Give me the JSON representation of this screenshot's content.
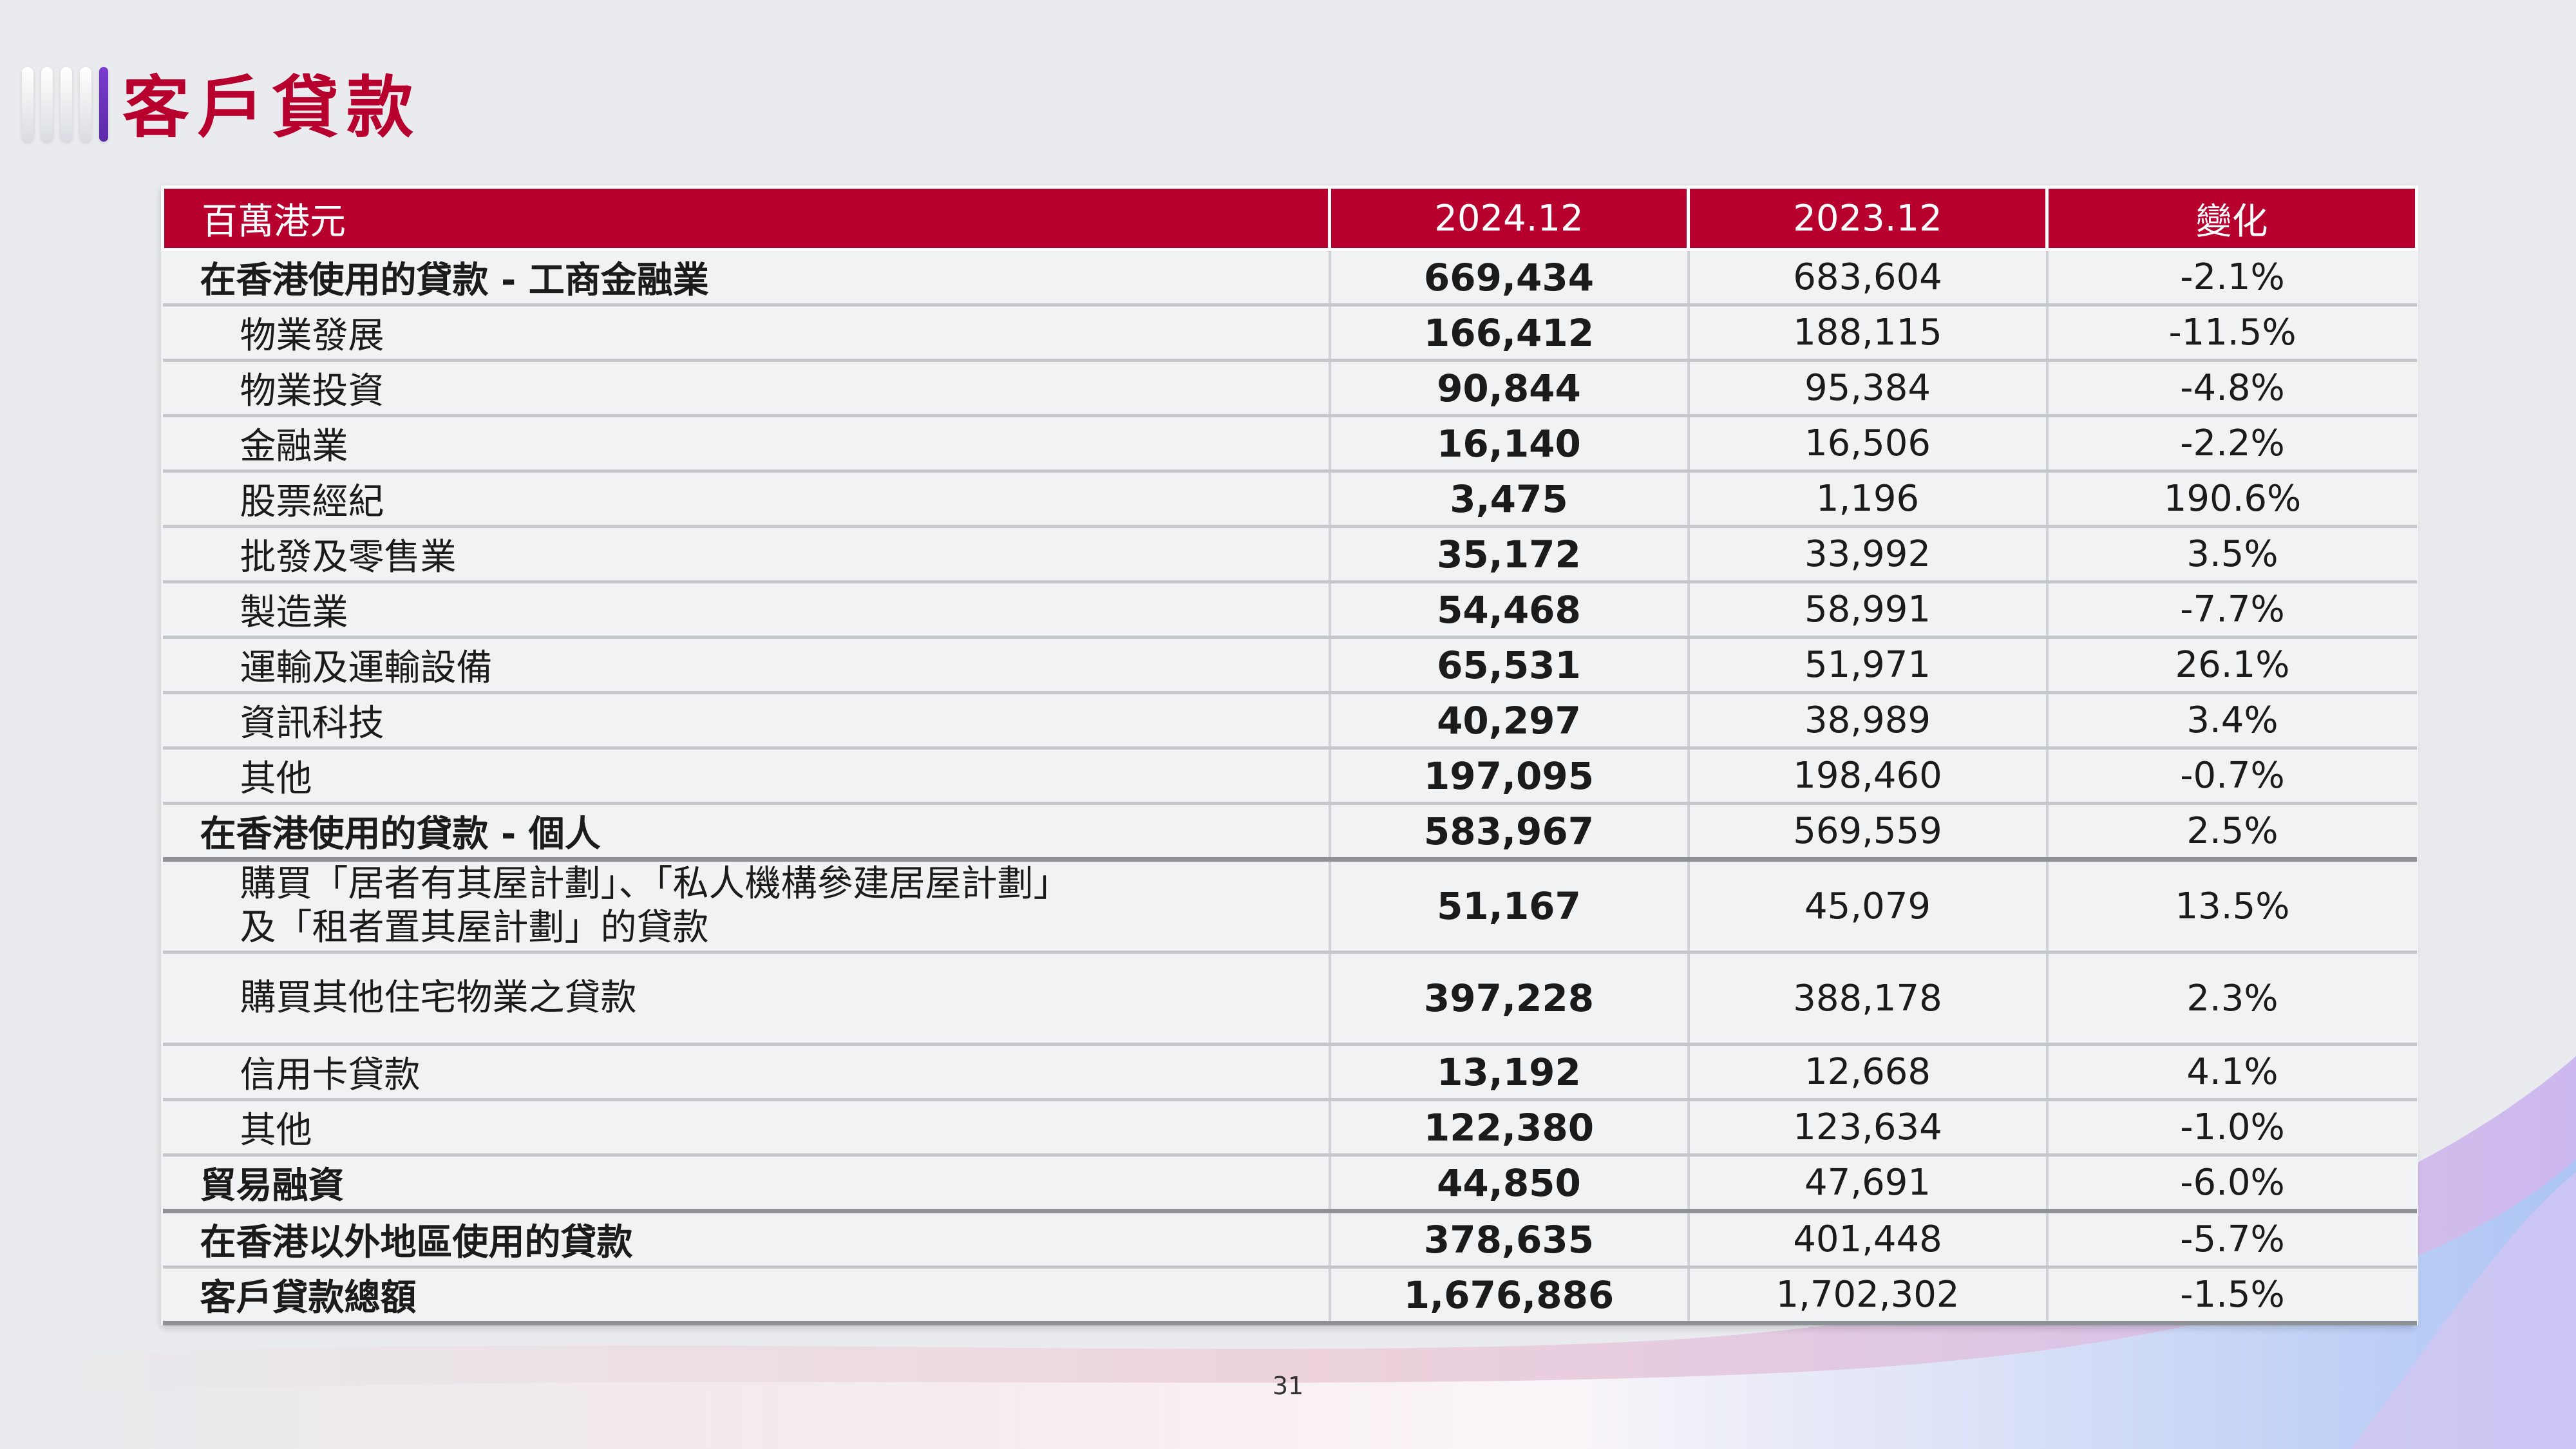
{
  "title": "客戶貸款",
  "table": {
    "headers": [
      "百萬港元",
      "2024.12",
      "2023.12",
      "變化"
    ],
    "rows": [
      {
        "label": "在香港使用的貸款 - 工商金融業",
        "v2024": "669,434",
        "v2023": "683,604",
        "change": "-2.1%"
      },
      {
        "label": "物業發展",
        "v2024": "166,412",
        "v2023": "188,115",
        "change": "-11.5%"
      },
      {
        "label": "物業投資",
        "v2024": "90,844",
        "v2023": "95,384",
        "change": "-4.8%"
      },
      {
        "label": "金融業",
        "v2024": "16,140",
        "v2023": "16,506",
        "change": "-2.2%"
      },
      {
        "label": "股票經紀",
        "v2024": "3,475",
        "v2023": "1,196",
        "change": "190.6%"
      },
      {
        "label": "批發及零售業",
        "v2024": "35,172",
        "v2023": "33,992",
        "change": "3.5%"
      },
      {
        "label": "製造業",
        "v2024": "54,468",
        "v2023": "58,991",
        "change": "-7.7%"
      },
      {
        "label": "運輸及運輸設備",
        "v2024": "65,531",
        "v2023": "51,971",
        "change": "26.1%"
      },
      {
        "label": "資訊科技",
        "v2024": "40,297",
        "v2023": "38,989",
        "change": "3.4%"
      },
      {
        "label": "其他",
        "v2024": "197,095",
        "v2023": "198,460",
        "change": "-0.7%"
      },
      {
        "label": "在香港使用的貸款 - 個人",
        "v2024": "583,967",
        "v2023": "569,559",
        "change": "2.5%"
      },
      {
        "label_line1": "購買「居者有其屋計劃」、「私人機構參建居屋計劃」",
        "label_line2": "及「租者置其屋計劃」的貸款",
        "v2024": "51,167",
        "v2023": "45,079",
        "change": "13.5%"
      },
      {
        "label": "購買其他住宅物業之貸款",
        "v2024": "397,228",
        "v2023": "388,178",
        "change": "2.3%"
      },
      {
        "label": "信用卡貸款",
        "v2024": "13,192",
        "v2023": "12,668",
        "change": "4.1%"
      },
      {
        "label": "其他",
        "v2024": "122,380",
        "v2023": "123,634",
        "change": "-1.0%"
      },
      {
        "label": "貿易融資",
        "v2024": "44,850",
        "v2023": "47,691",
        "change": "-6.0%"
      },
      {
        "label": "在香港以外地區使用的貸款",
        "v2024": "378,635",
        "v2023": "401,448",
        "change": "-5.7%"
      },
      {
        "label": "客戶貸款總額",
        "v2024": "1,676,886",
        "v2023": "1,702,302",
        "change": "-1.5%"
      }
    ]
  },
  "page_number": "31",
  "colors": {
    "accent": "#b8002e",
    "title_bar_accent": "#7a3ccf",
    "background": "#e9ebee"
  }
}
